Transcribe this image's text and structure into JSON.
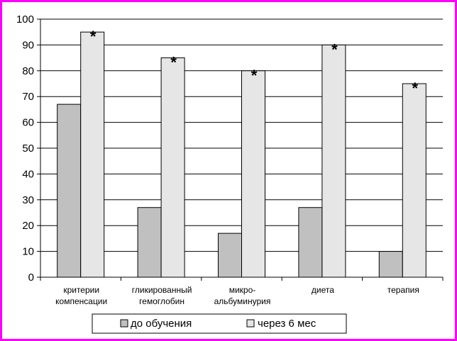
{
  "chart_data": {
    "type": "bar",
    "categories": [
      [
        "критерии",
        "компенсации"
      ],
      [
        "гликированный",
        "гемоглобин"
      ],
      [
        "микро-",
        "альбуминурия"
      ],
      [
        "диета"
      ],
      [
        "терапия"
      ]
    ],
    "series": [
      {
        "name": "до обучения",
        "values": [
          67,
          27,
          17,
          27,
          10
        ],
        "color": "#c0c0c0"
      },
      {
        "name": "через 6 мес",
        "values": [
          95,
          85,
          80,
          90,
          75
        ],
        "color": "#e6e6e6",
        "annotation": "*"
      }
    ],
    "ylim": [
      0,
      100
    ],
    "yticks": [
      0,
      10,
      20,
      30,
      40,
      50,
      60,
      70,
      80,
      90,
      100
    ],
    "grid": true,
    "legend": "bottom"
  },
  "colors": {
    "frame": "#ff00ff",
    "axis": "#000000",
    "grid": "#000000"
  }
}
